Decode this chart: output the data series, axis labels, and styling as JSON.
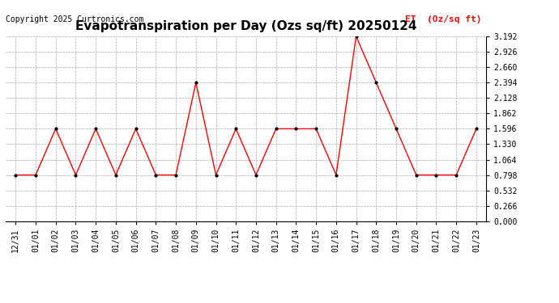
{
  "title": "Evapotranspiration per Day (Ozs sq/ft) 20250124",
  "copyright": "Copyright 2025 Curtronics.com",
  "legend_label": "ET  (Oz/sq ft)",
  "dates": [
    "12/31",
    "01/01",
    "01/02",
    "01/03",
    "01/04",
    "01/05",
    "01/06",
    "01/07",
    "01/08",
    "01/09",
    "01/10",
    "01/11",
    "01/12",
    "01/13",
    "01/14",
    "01/15",
    "01/16",
    "01/17",
    "01/18",
    "01/19",
    "01/20",
    "01/21",
    "01/22",
    "01/23"
  ],
  "values": [
    0.798,
    0.798,
    1.596,
    0.798,
    1.596,
    0.798,
    1.596,
    0.798,
    0.798,
    2.394,
    0.798,
    1.596,
    0.798,
    1.596,
    1.596,
    1.596,
    0.798,
    3.192,
    2.394,
    1.596,
    0.798,
    0.798,
    0.798,
    1.596
  ],
  "line_color": "red",
  "marker_color": "black",
  "y_ticks": [
    0.0,
    0.266,
    0.532,
    0.798,
    1.064,
    1.33,
    1.596,
    1.862,
    2.128,
    2.394,
    2.66,
    2.926,
    3.192
  ],
  "ylim": [
    0.0,
    3.192
  ],
  "background_color": "white",
  "grid_color": "#aaaaaa",
  "title_fontsize": 11,
  "axis_fontsize": 7,
  "copyright_fontsize": 7,
  "legend_fontsize": 8,
  "legend_color": "red"
}
